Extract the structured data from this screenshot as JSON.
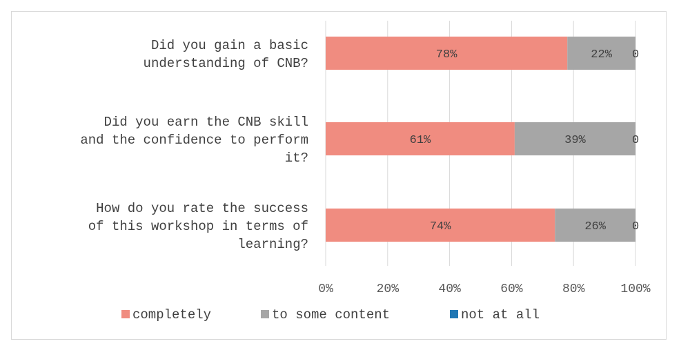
{
  "chart_data": {
    "type": "bar",
    "orientation": "horizontal",
    "stacked": "percent",
    "categories": [
      [
        "Did you gain a basic",
        "understanding of CNB?"
      ],
      [
        "Did you earn the CNB skill",
        "and the confidence to perform",
        "it?"
      ],
      [
        "How do you rate the success",
        "of this workshop in terms of",
        "learning?"
      ]
    ],
    "series": [
      {
        "name": "completely",
        "color": "#f08c80",
        "values": [
          78,
          61,
          74
        ],
        "labels": [
          "78%",
          "61%",
          "74%"
        ]
      },
      {
        "name": "to some content",
        "color": "#a6a6a6",
        "values": [
          22,
          39,
          26
        ],
        "labels": [
          "22%",
          "39%",
          "26%"
        ]
      },
      {
        "name": "not at all",
        "color": "#1f77b4",
        "values": [
          0,
          0,
          0
        ],
        "labels": [
          "0",
          "0",
          "0"
        ]
      }
    ],
    "xticks": [
      "0%",
      "20%",
      "40%",
      "60%",
      "80%",
      "100%"
    ],
    "xlim": [
      0,
      100
    ],
    "grid": true,
    "legend": "bottom"
  }
}
